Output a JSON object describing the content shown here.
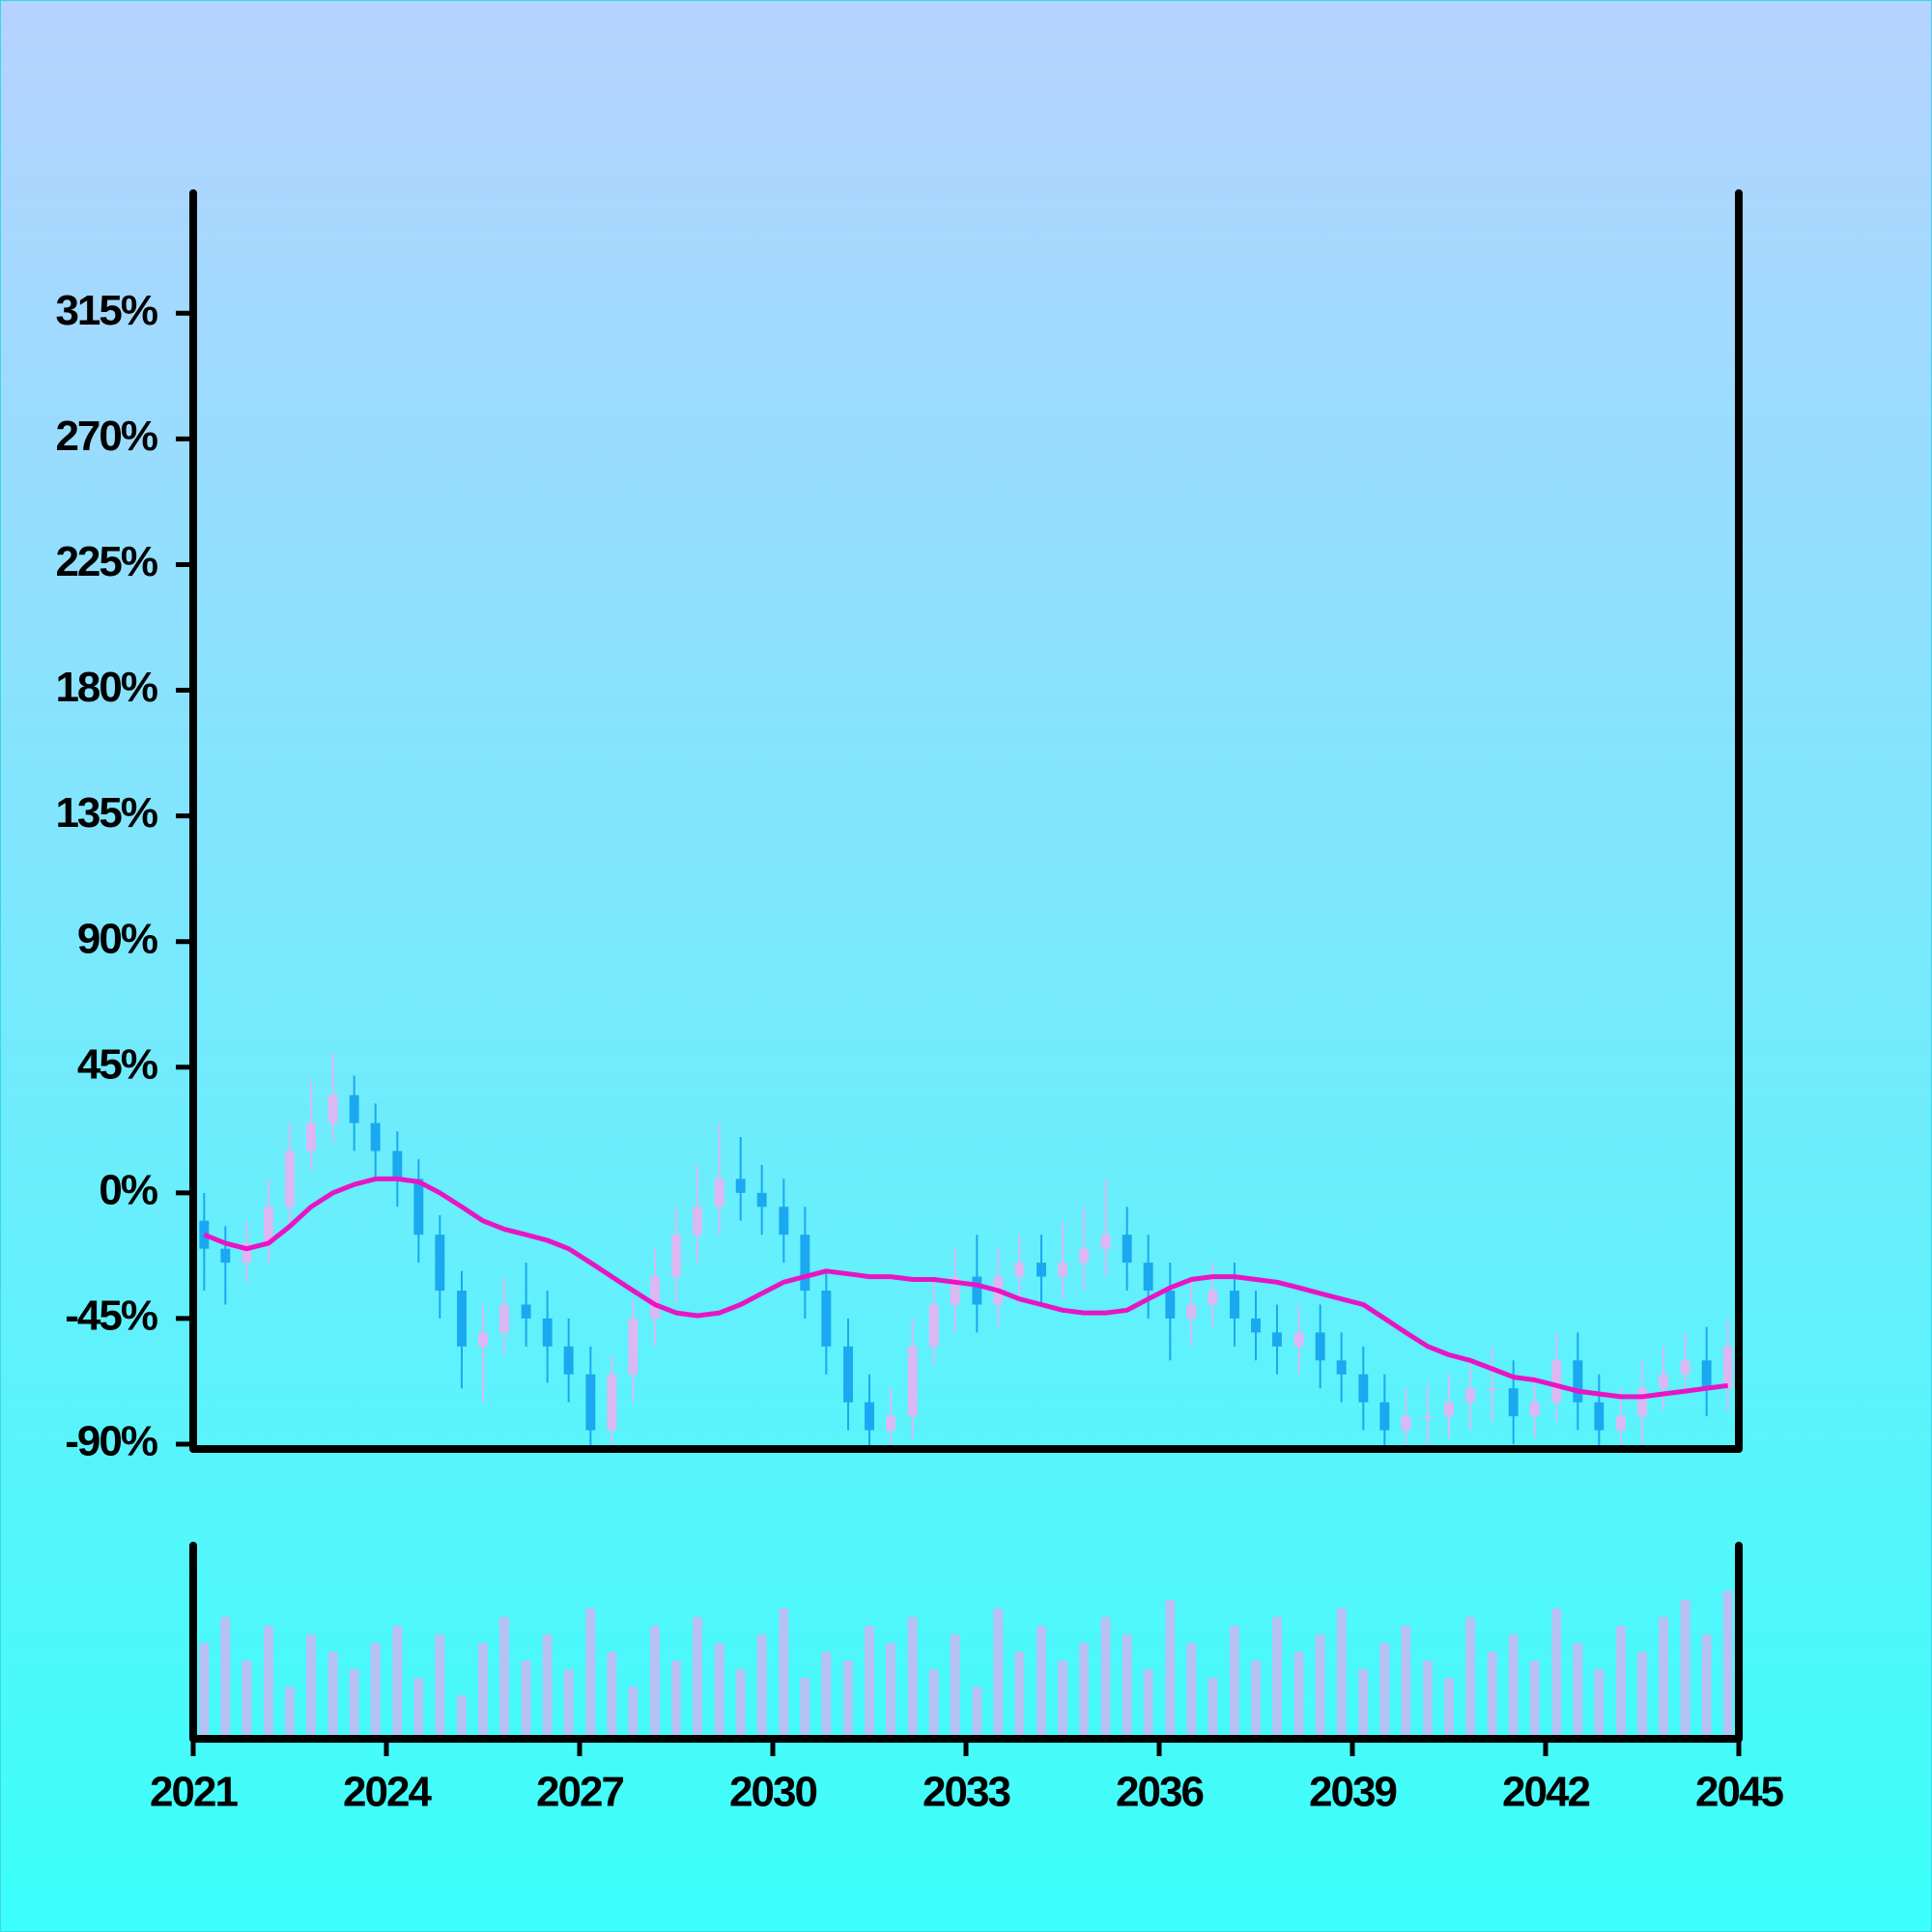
{
  "chart_data": {
    "type": "candlestick",
    "xlim": [
      2021,
      2045
    ],
    "xticks": [
      2021,
      2024,
      2027,
      2030,
      2033,
      2036,
      2039,
      2042,
      2045
    ],
    "ylim": [
      -90,
      358
    ],
    "yticks": [
      {
        "value": -90,
        "label": "-90%"
      },
      {
        "value": -45,
        "label": "-45%"
      },
      {
        "value": 0,
        "label": "0%"
      },
      {
        "value": 45,
        "label": "45%"
      },
      {
        "value": 90,
        "label": "90%"
      },
      {
        "value": 135,
        "label": "135%"
      },
      {
        "value": 180,
        "label": "180%"
      },
      {
        "value": 225,
        "label": "225%"
      },
      {
        "value": 270,
        "label": "270%"
      },
      {
        "value": 315,
        "label": "315%"
      }
    ],
    "up_color": "#dcb8f2",
    "down_color": "#1aa8f0",
    "ma_color": "#e815c4",
    "volume_color": "#cdb6f2",
    "volume_ylim": [
      0,
      100
    ],
    "x": [
      2021.17,
      2021.5,
      2021.83,
      2022.17,
      2022.5,
      2022.83,
      2023.17,
      2023.5,
      2023.83,
      2024.17,
      2024.5,
      2024.83,
      2025.17,
      2025.5,
      2025.83,
      2026.17,
      2026.5,
      2026.83,
      2027.17,
      2027.5,
      2027.83,
      2028.17,
      2028.5,
      2028.83,
      2029.17,
      2029.5,
      2029.83,
      2030.17,
      2030.5,
      2030.83,
      2031.17,
      2031.5,
      2031.83,
      2032.17,
      2032.5,
      2032.83,
      2033.17,
      2033.5,
      2033.83,
      2034.17,
      2034.5,
      2034.83,
      2035.17,
      2035.5,
      2035.83,
      2036.17,
      2036.5,
      2036.83,
      2037.17,
      2037.5,
      2037.83,
      2038.17,
      2038.5,
      2038.83,
      2039.17,
      2039.5,
      2039.83,
      2040.17,
      2040.5,
      2040.83,
      2041.17,
      2041.5,
      2041.83,
      2042.17,
      2042.5,
      2042.83,
      2043.17,
      2043.5,
      2043.83,
      2044.17,
      2044.5,
      2044.83
    ],
    "open": [
      -10,
      -20,
      -25,
      -18,
      -5,
      15,
      25,
      35,
      25,
      15,
      5,
      -15,
      -35,
      -55,
      -50,
      -40,
      -45,
      -55,
      -65,
      -85,
      -65,
      -45,
      -30,
      -15,
      -5,
      5,
      0,
      -5,
      -15,
      -35,
      -55,
      -75,
      -85,
      -80,
      -55,
      -40,
      -30,
      -40,
      -30,
      -25,
      -30,
      -25,
      -20,
      -15,
      -25,
      -35,
      -45,
      -40,
      -35,
      -45,
      -50,
      -55,
      -50,
      -60,
      -65,
      -75,
      -85,
      -80,
      -80,
      -75,
      -70,
      -70,
      -80,
      -75,
      -60,
      -75,
      -85,
      -80,
      -70,
      -65,
      -60,
      -70
    ],
    "close": [
      -20,
      -25,
      -18,
      -5,
      15,
      25,
      35,
      25,
      15,
      5,
      -15,
      -35,
      -55,
      -50,
      -40,
      -45,
      -55,
      -65,
      -85,
      -65,
      -45,
      -30,
      -15,
      -5,
      5,
      0,
      -5,
      -15,
      -35,
      -55,
      -75,
      -85,
      -80,
      -55,
      -40,
      -30,
      -40,
      -30,
      -25,
      -30,
      -25,
      -20,
      -15,
      -25,
      -35,
      -45,
      -40,
      -35,
      -45,
      -50,
      -55,
      -50,
      -60,
      -65,
      -75,
      -85,
      -80,
      -80,
      -75,
      -70,
      -70,
      -80,
      -75,
      -60,
      -75,
      -85,
      -80,
      -70,
      -65,
      -60,
      -70,
      -55
    ],
    "high": [
      0,
      -12,
      -10,
      5,
      25,
      40,
      50,
      42,
      32,
      22,
      12,
      -8,
      -28,
      -40,
      -30,
      -25,
      -35,
      -45,
      -55,
      -58,
      -38,
      -20,
      -5,
      10,
      25,
      20,
      10,
      5,
      -5,
      -28,
      -45,
      -65,
      -70,
      -45,
      -30,
      -20,
      -15,
      -20,
      -15,
      -15,
      -10,
      -5,
      5,
      -5,
      -15,
      -25,
      -30,
      -25,
      -25,
      -35,
      -40,
      -40,
      -40,
      -50,
      -55,
      -65,
      -70,
      -68,
      -65,
      -60,
      -55,
      -60,
      -65,
      -50,
      -50,
      -65,
      -70,
      -60,
      -55,
      -50,
      -48,
      -45
    ],
    "low": [
      -35,
      -40,
      -32,
      -25,
      -12,
      8,
      18,
      15,
      5,
      -5,
      -25,
      -45,
      -70,
      -75,
      -58,
      -55,
      -68,
      -75,
      -95,
      -92,
      -75,
      -55,
      -40,
      -25,
      -15,
      -10,
      -15,
      -25,
      -45,
      -65,
      -85,
      -95,
      -92,
      -88,
      -62,
      -50,
      -50,
      -48,
      -40,
      -40,
      -38,
      -35,
      -30,
      -35,
      -45,
      -60,
      -55,
      -48,
      -55,
      -60,
      -65,
      -65,
      -70,
      -75,
      -85,
      -95,
      -92,
      -92,
      -88,
      -85,
      -82,
      -90,
      -88,
      -82,
      -85,
      -95,
      -95,
      -90,
      -78,
      -72,
      -80,
      -78
    ],
    "ma": [
      -15,
      -18,
      -20,
      -18,
      -12,
      -5,
      0,
      3,
      5,
      5,
      4,
      0,
      -5,
      -10,
      -13,
      -15,
      -17,
      -20,
      -25,
      -30,
      -35,
      -40,
      -43,
      -44,
      -43,
      -40,
      -36,
      -32,
      -30,
      -28,
      -29,
      -30,
      -30,
      -31,
      -31,
      -32,
      -33,
      -35,
      -38,
      -40,
      -42,
      -43,
      -43,
      -42,
      -38,
      -34,
      -31,
      -30,
      -30,
      -31,
      -32,
      -34,
      -36,
      -38,
      -40,
      -45,
      -50,
      -55,
      -58,
      -60,
      -63,
      -66,
      -67,
      -69,
      -71,
      -72,
      -73,
      -73,
      -72,
      -71,
      -70,
      -69
    ],
    "volume": [
      55,
      70,
      45,
      65,
      30,
      60,
      50,
      40,
      55,
      65,
      35,
      60,
      25,
      55,
      70,
      45,
      60,
      40,
      75,
      50,
      30,
      65,
      45,
      70,
      55,
      40,
      60,
      75,
      35,
      50,
      45,
      65,
      55,
      70,
      40,
      60,
      30,
      75,
      50,
      65,
      45,
      55,
      70,
      60,
      40,
      80,
      55,
      35,
      65,
      45,
      70,
      50,
      60,
      75,
      40,
      55,
      65,
      45,
      35,
      70,
      50,
      60,
      45,
      75,
      55,
      40,
      65,
      50,
      70,
      80,
      60,
      85
    ]
  }
}
